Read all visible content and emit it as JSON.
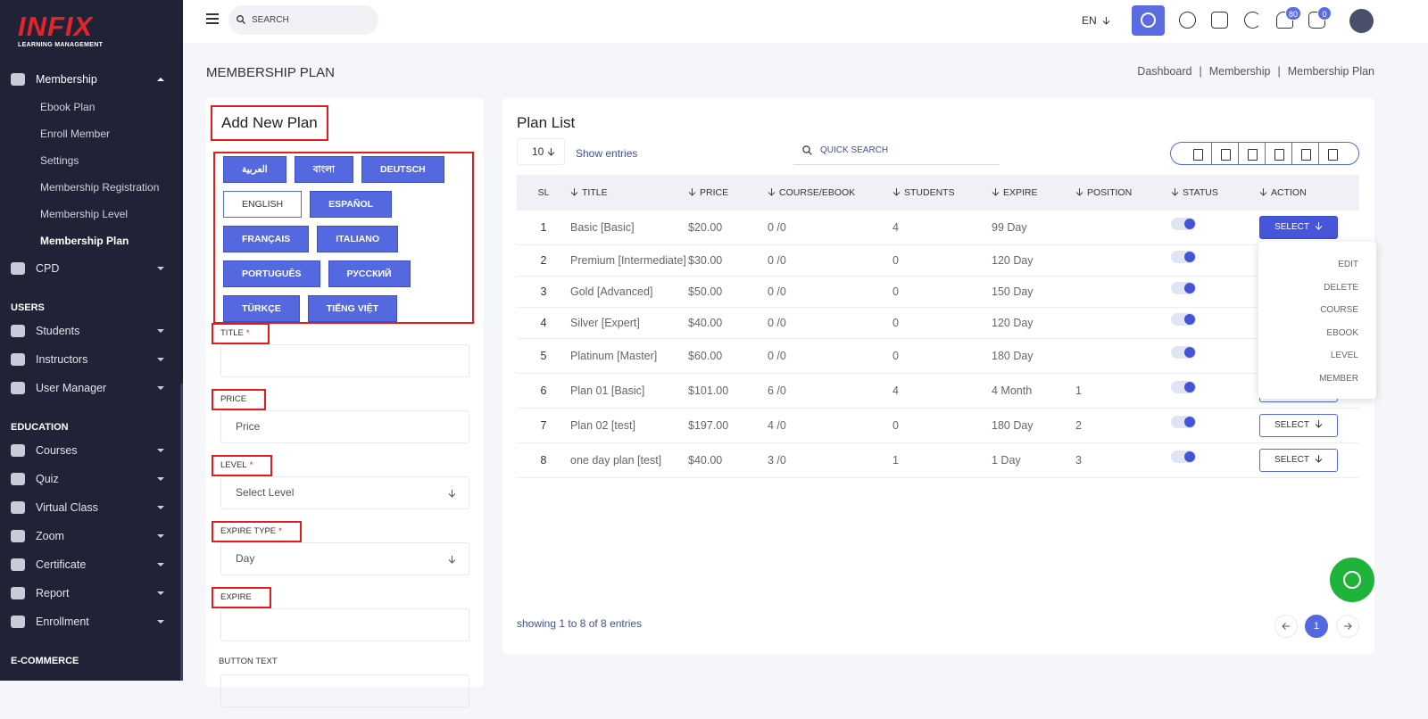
{
  "sidebar": {
    "logo": "INFIX",
    "logo_sub": "LEARNING MANAGEMENT",
    "menu": [
      {
        "label": "Membership",
        "children": [
          "Ebook Plan",
          "Enroll Member",
          "Settings",
          "Membership Registration",
          "Membership Level",
          "Membership Plan"
        ],
        "active_child": 5
      },
      {
        "label": "CPD"
      }
    ],
    "sections": [
      {
        "title": "USERS",
        "items": [
          "Students",
          "Instructors",
          "User Manager"
        ]
      },
      {
        "title": "EDUCATION",
        "items": [
          "Courses",
          "Quiz",
          "Virtual Class",
          "Zoom",
          "Certificate",
          "Report",
          "Enrollment"
        ]
      },
      {
        "title": "E-COMMERCE",
        "items": []
      }
    ]
  },
  "topbar": {
    "search": "SEARCH",
    "language": "EN",
    "notifications": 80,
    "messages": 0
  },
  "page": {
    "title": "MEMBERSHIP PLAN",
    "breadcrumb": [
      "Dashboard",
      "Membership",
      "Membership Plan"
    ],
    "separator": "|"
  },
  "form": {
    "title": "Add New Plan",
    "languages": [
      "العربية",
      "বাংলা",
      "DEUTSCH",
      "ENGLISH",
      "ESPAÑOL",
      "FRANÇAIS",
      "ITALIANO",
      "PORTUGUÊS",
      "РУССКИЙ",
      "TÜRKÇE",
      "TIẾNG VIỆT"
    ],
    "active_language": 3,
    "required_mark": "*",
    "fields": [
      {
        "label": "TITLE",
        "required": true
      },
      {
        "label": "PRICE",
        "placeholder": "Price"
      },
      {
        "label": "LEVEL",
        "required": true,
        "placeholder": "Select Level",
        "select": true
      },
      {
        "label": "EXPIRE TYPE",
        "required": true,
        "placeholder": "Day",
        "select": true
      },
      {
        "label": "EXPIRE"
      },
      {
        "label": "BUTTON TEXT"
      }
    ]
  },
  "table": {
    "title": "Plan List",
    "page_size": 10,
    "show_entries": "Show entries",
    "quick_search": "QUICK SEARCH",
    "headers": [
      "SL",
      "TITLE",
      "PRICE",
      "COURSE/EBOOK",
      "STUDENTS",
      "EXPIRE",
      "POSITION",
      "STATUS",
      "ACTION"
    ],
    "rows": [
      {
        "sl": 1,
        "title": "Basic [Basic]",
        "price": "$20.00",
        "course_ebook": "0 /0",
        "students": 4,
        "expire": "99 Day",
        "position": null,
        "status": true
      },
      {
        "sl": 2,
        "title": "Premium [Intermediate]",
        "price": "$30.00",
        "course_ebook": "0 /0",
        "students": 0,
        "expire": "120 Day",
        "position": null,
        "status": true
      },
      {
        "sl": 3,
        "title": "Gold [Advanced]",
        "price": "$50.00",
        "course_ebook": "0 /0",
        "students": 0,
        "expire": "150 Day",
        "position": null,
        "status": true
      },
      {
        "sl": 4,
        "title": "Silver [Expert]",
        "price": "$40.00",
        "course_ebook": "0 /0",
        "students": 0,
        "expire": "120 Day",
        "position": null,
        "status": true
      },
      {
        "sl": 5,
        "title": "Platinum [Master]",
        "price": "$60.00",
        "course_ebook": "0 /0",
        "students": 0,
        "expire": "180 Day",
        "position": null,
        "status": true
      },
      {
        "sl": 6,
        "title": "Plan 01 [Basic]",
        "price": "$101.00",
        "course_ebook": "6 /0",
        "students": 4,
        "expire": "4 Month",
        "position": 1,
        "status": true
      },
      {
        "sl": 7,
        "title": "Plan 02 [test]",
        "price": "$197.00",
        "course_ebook": "4 /0",
        "students": 0,
        "expire": "180 Day",
        "position": 2,
        "status": true
      },
      {
        "sl": 8,
        "title": "one day plan [test]",
        "price": "$40.00",
        "course_ebook": "3 /0",
        "students": 1,
        "expire": "1 Day",
        "position": 3,
        "status": true
      }
    ],
    "action_label": "SELECT",
    "action_menu": {
      "open_row": 0,
      "items": [
        "EDIT",
        "DELETE",
        "COURSE",
        "EBOOK",
        "LEVEL",
        "MEMBER"
      ]
    },
    "footer": "showing 1 to 8 of 8 entries",
    "current_page": 1
  }
}
